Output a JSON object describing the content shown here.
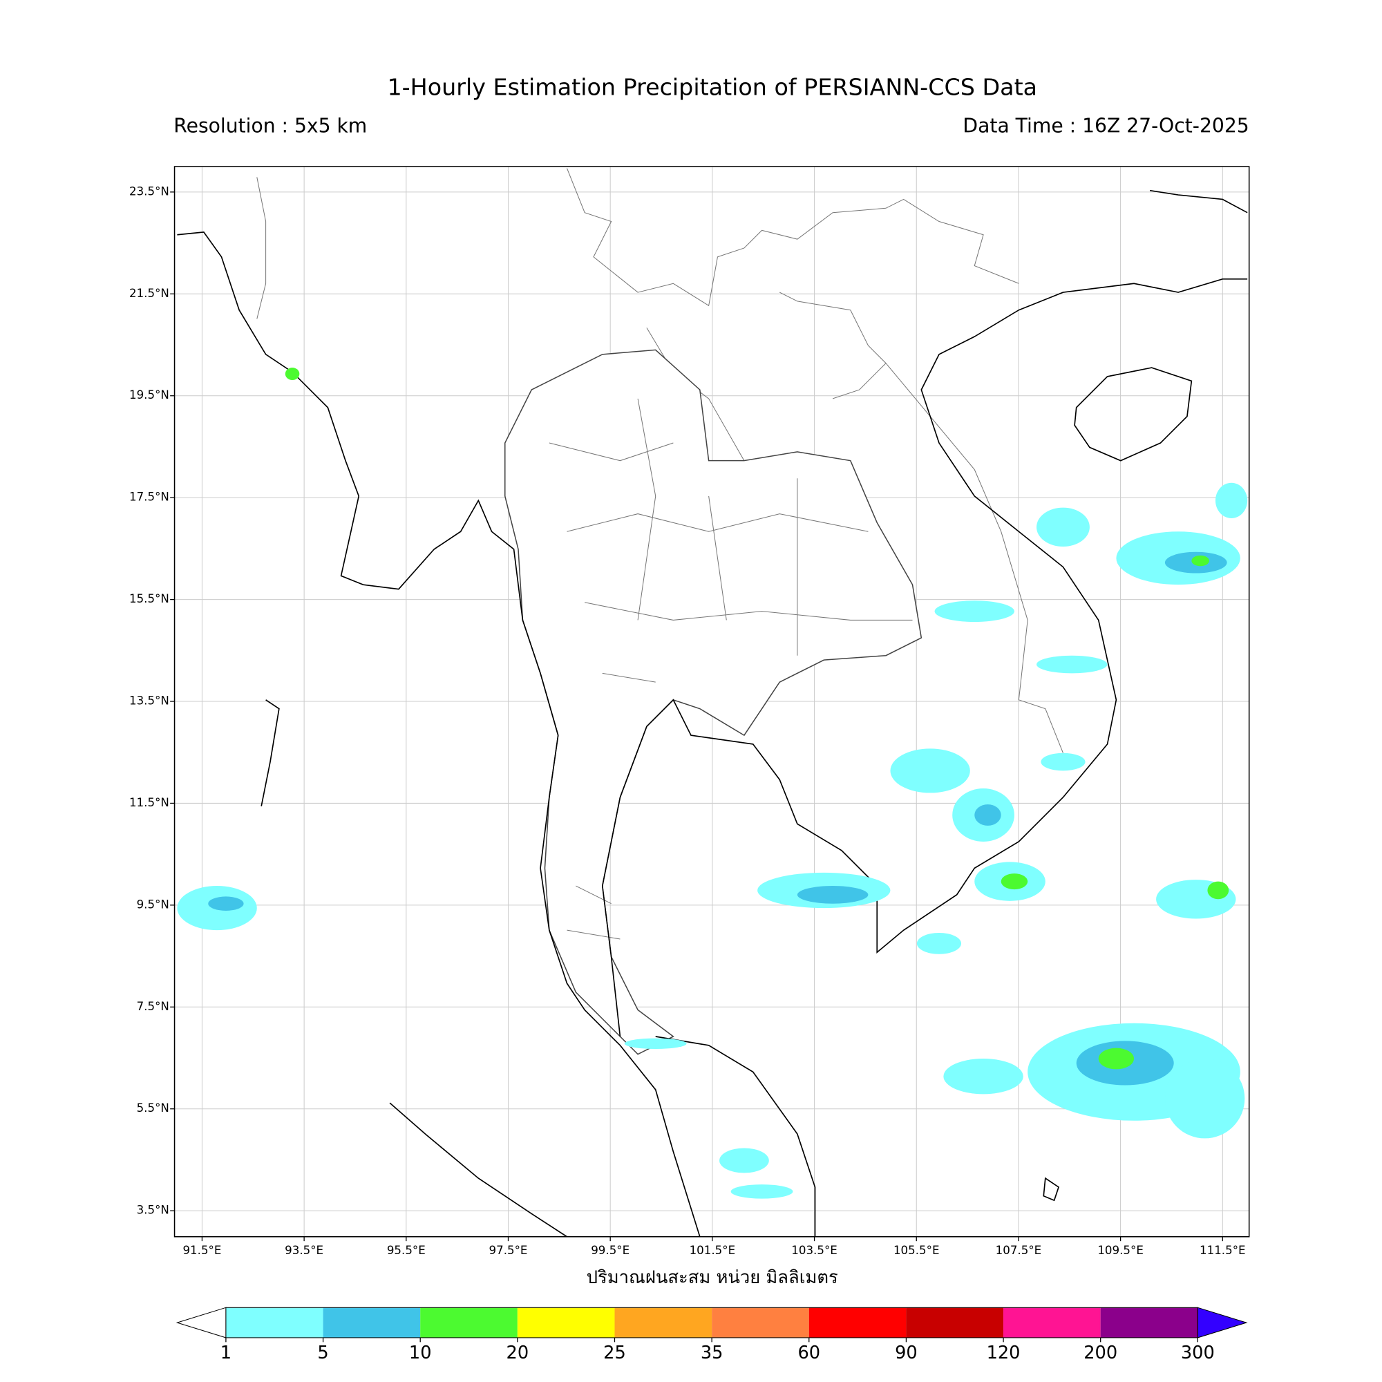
{
  "header": {
    "title": "1-Hourly Estimation Precipitation of PERSIANN-CCS Data",
    "resolution": "Resolution : 5x5 km",
    "data_time": "Data Time : 16Z 27-Oct-2025"
  },
  "map": {
    "xlim": [
      90.96,
      112.02
    ],
    "ylim": [
      2.99,
      24.0
    ],
    "xticks": [
      {
        "value": 91.5,
        "label": "91.5°E"
      },
      {
        "value": 93.5,
        "label": "93.5°E"
      },
      {
        "value": 95.5,
        "label": "95.5°E"
      },
      {
        "value": 97.5,
        "label": "97.5°E"
      },
      {
        "value": 99.5,
        "label": "99.5°E"
      },
      {
        "value": 101.5,
        "label": "101.5°E"
      },
      {
        "value": 103.5,
        "label": "103.5°E"
      },
      {
        "value": 105.5,
        "label": "105.5°E"
      },
      {
        "value": 107.5,
        "label": "107.5°E"
      },
      {
        "value": 109.5,
        "label": "109.5°E"
      },
      {
        "value": 111.5,
        "label": "111.5°E"
      }
    ],
    "yticks": [
      {
        "value": 23.5,
        "label": "23.5°N"
      },
      {
        "value": 21.5,
        "label": "21.5°N"
      },
      {
        "value": 19.5,
        "label": "19.5°N"
      },
      {
        "value": 17.5,
        "label": "17.5°N"
      },
      {
        "value": 15.5,
        "label": "15.5°N"
      },
      {
        "value": 13.5,
        "label": "13.5°N"
      },
      {
        "value": 11.5,
        "label": "11.5°N"
      },
      {
        "value": 9.5,
        "label": "9.5°N"
      },
      {
        "value": 7.5,
        "label": "7.5°N"
      },
      {
        "value": 5.5,
        "label": "5.5°N"
      },
      {
        "value": 3.5,
        "label": "3.5°N"
      }
    ],
    "xlabel": "ปริมาณฝนสะสม หน่วย มิลลิเมตร"
  },
  "colorbar": {
    "levels": [
      1,
      5,
      10,
      20,
      25,
      35,
      60,
      90,
      120,
      200,
      300
    ],
    "colors": [
      "#7fffff",
      "#40c4e8",
      "#4cfa30",
      "#ffff00",
      "#ffa620",
      "#ff8040",
      "#ff0000",
      "#c80000",
      "#ff1493",
      "#8b008b"
    ],
    "under_color": "#ffffff",
    "over_color": "#3300ff"
  }
}
